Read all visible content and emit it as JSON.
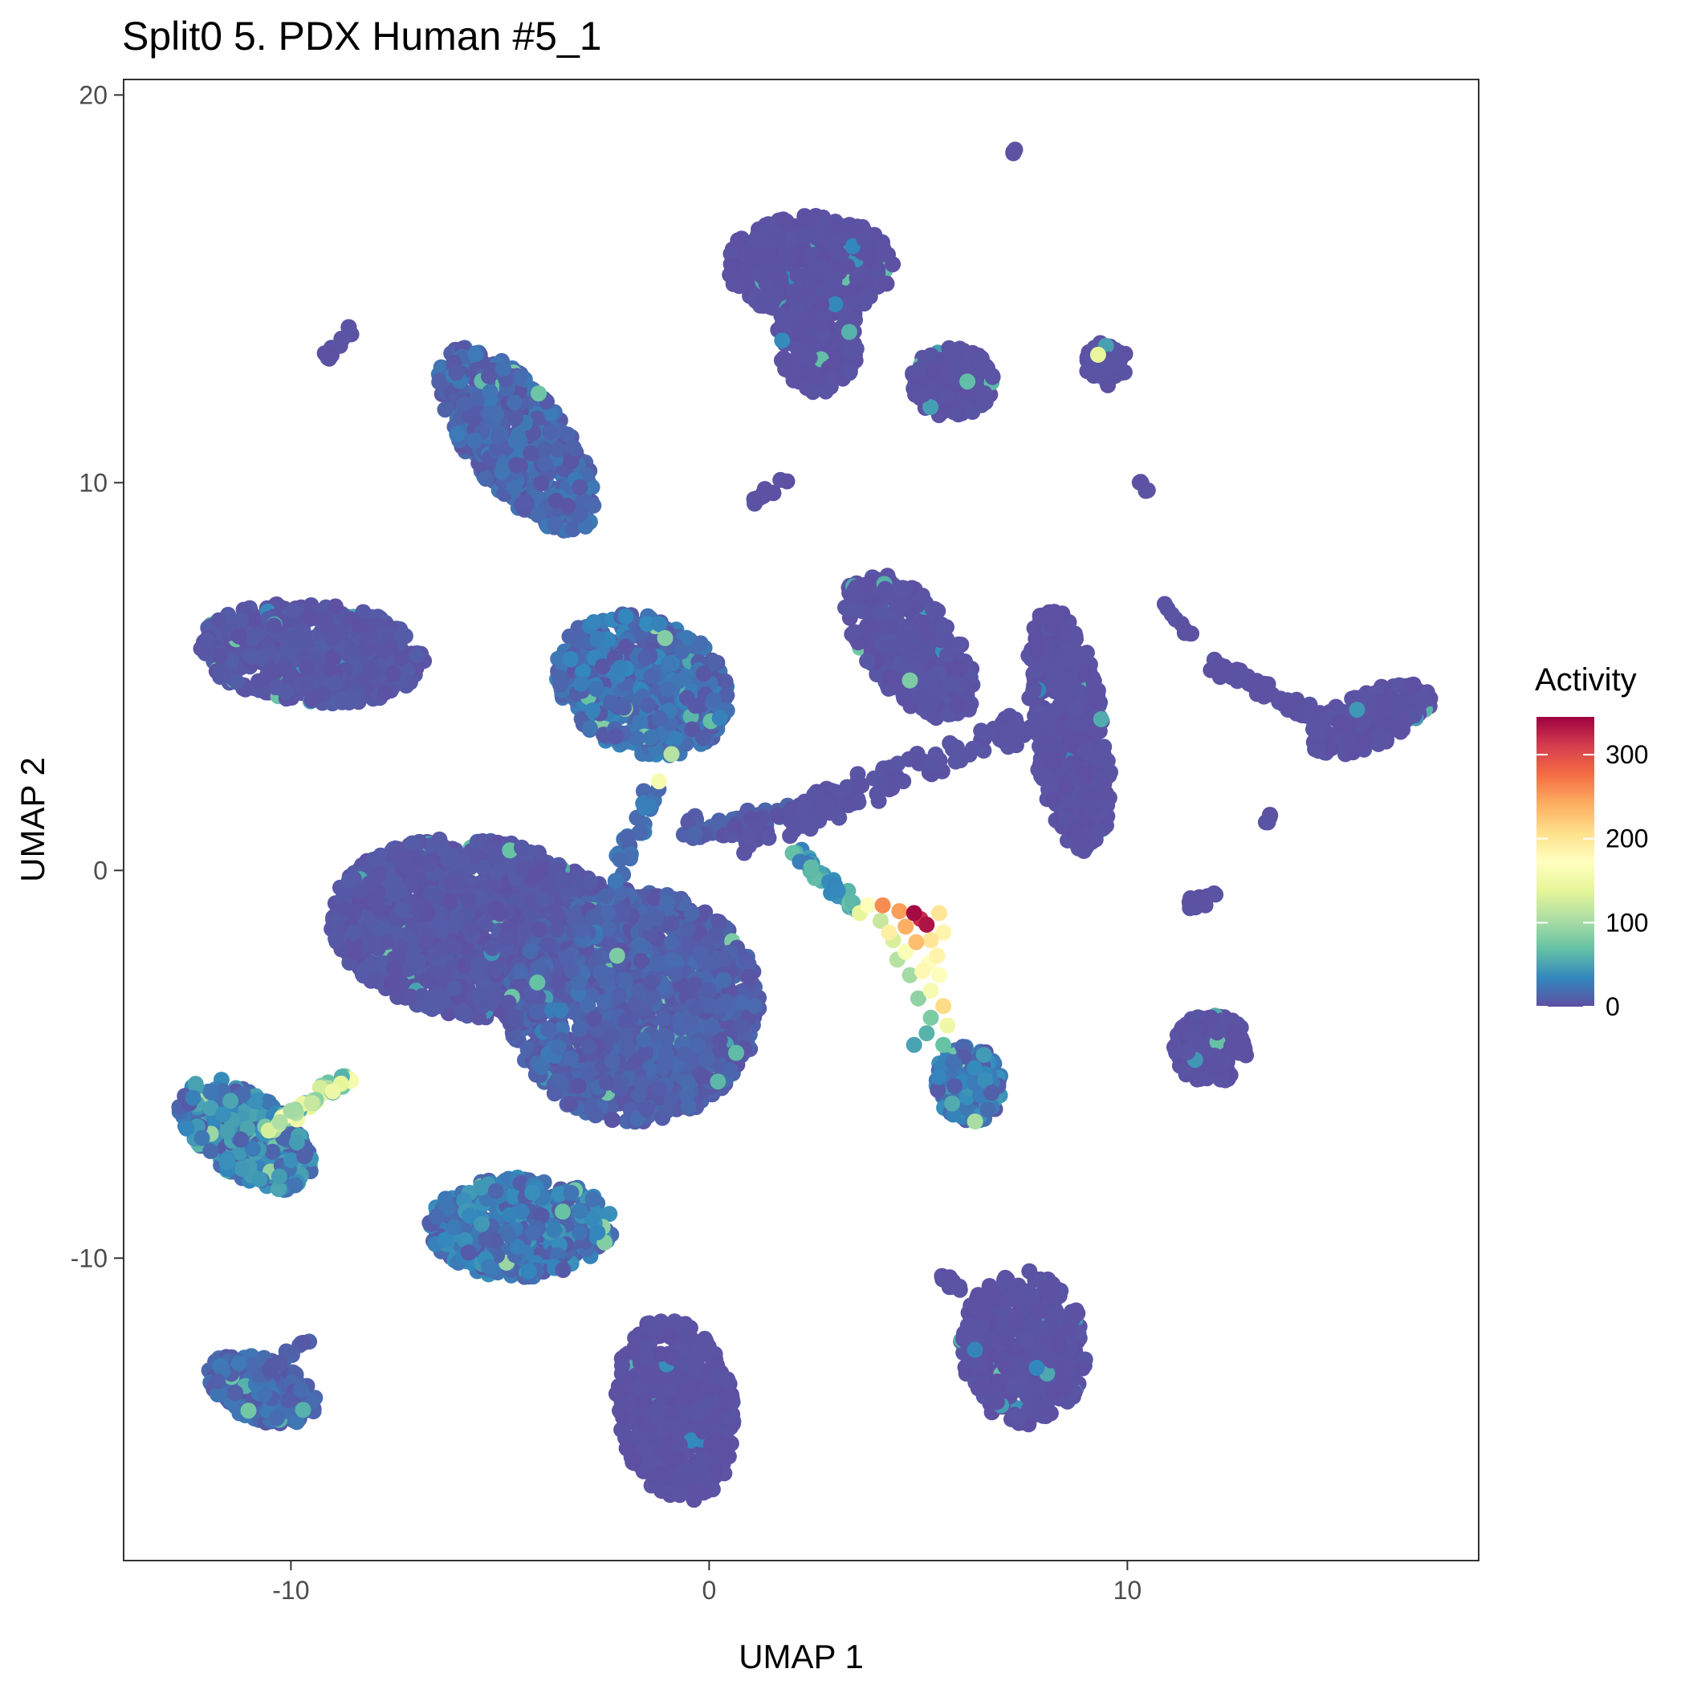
{
  "chart_data": {
    "type": "scatter",
    "title": "Split0 5. PDX Human #5_1",
    "xlabel": "UMAP 1",
    "ylabel": "UMAP 2",
    "xlim": [
      -14,
      18.4
    ],
    "ylim": [
      -17.8,
      20.4
    ],
    "x_ticks": [
      -10,
      0,
      10
    ],
    "y_ticks": [
      -10,
      0,
      10,
      20
    ],
    "grid": false,
    "legend": {
      "title": "Activity",
      "position": "right",
      "ticks": [
        0,
        100,
        200,
        300
      ],
      "range": [
        0,
        345
      ],
      "colorscale": [
        "#5e4fa2",
        "#3288bd",
        "#66c2a5",
        "#abdda4",
        "#e6f598",
        "#ffffbf",
        "#fee08b",
        "#fdae61",
        "#f46d43",
        "#d53e4f",
        "#9e0142"
      ]
    },
    "clusters": [
      {
        "cx": -5.5,
        "cy": -1.5,
        "rx": 3.6,
        "ry": 2.3,
        "rot": -8,
        "activity": 5,
        "n": 1400
      },
      {
        "cx": -1.8,
        "cy": -3.5,
        "rx": 3.0,
        "ry": 3.0,
        "rot": 35,
        "activity": 10,
        "n": 1300
      },
      {
        "cx": -1.6,
        "cy": 4.8,
        "rx": 2.2,
        "ry": 1.7,
        "rot": -30,
        "activity": 20,
        "n": 600
      },
      {
        "cx": -4.6,
        "cy": 11.1,
        "rx": 2.8,
        "ry": 1.2,
        "rot": -55,
        "activity": 15,
        "n": 500
      },
      {
        "cx": -9.5,
        "cy": 5.6,
        "rx": 2.7,
        "ry": 1.3,
        "rot": -5,
        "activity": 5,
        "n": 550
      },
      {
        "cx": 2.4,
        "cy": 15.6,
        "rx": 2.0,
        "ry": 1.3,
        "rot": 0,
        "activity": 2,
        "n": 450
      },
      {
        "cx": 2.6,
        "cy": 13.8,
        "rx": 1.0,
        "ry": 1.5,
        "rot": 0,
        "activity": 2,
        "n": 200
      },
      {
        "cx": 5.8,
        "cy": 12.6,
        "rx": 1.0,
        "ry": 0.9,
        "rot": 0,
        "activity": 2,
        "n": 150
      },
      {
        "cx": 4.8,
        "cy": 5.8,
        "rx": 2.2,
        "ry": 1.1,
        "rot": -55,
        "activity": 3,
        "n": 450
      },
      {
        "cx": 8.6,
        "cy": 3.6,
        "rx": 3.2,
        "ry": 0.9,
        "rot": -82,
        "activity": 2,
        "n": 450
      },
      {
        "cx": 15.8,
        "cy": 3.9,
        "rx": 1.6,
        "ry": 0.7,
        "rot": 25,
        "activity": 2,
        "n": 200
      },
      {
        "cx": -4.5,
        "cy": -9.2,
        "rx": 2.2,
        "ry": 1.3,
        "rot": 0,
        "activity": 25,
        "n": 500
      },
      {
        "cx": -0.8,
        "cy": -13.9,
        "rx": 1.4,
        "ry": 2.4,
        "rot": 8,
        "activity": 2,
        "n": 450
      },
      {
        "cx": 7.5,
        "cy": -12.3,
        "rx": 1.5,
        "ry": 2.0,
        "rot": 5,
        "activity": 2,
        "n": 420
      },
      {
        "cx": -10.7,
        "cy": -13.4,
        "rx": 1.4,
        "ry": 0.8,
        "rot": -25,
        "activity": 15,
        "n": 220
      },
      {
        "cx": -11.1,
        "cy": -6.8,
        "rx": 1.9,
        "ry": 1.0,
        "rot": -40,
        "activity": 30,
        "n": 350
      },
      {
        "cx": 12.0,
        "cy": -4.6,
        "rx": 0.9,
        "ry": 0.9,
        "rot": 0,
        "activity": 2,
        "n": 150
      },
      {
        "cx": 6.2,
        "cy": -5.5,
        "rx": 0.8,
        "ry": 1.0,
        "rot": 10,
        "activity": 25,
        "n": 180
      },
      {
        "cx": 9.5,
        "cy": 13.1,
        "rx": 0.5,
        "ry": 0.6,
        "rot": 0,
        "activity": 2,
        "n": 50
      }
    ],
    "trails": [
      {
        "from": [
          -1.2,
          2.5
        ],
        "to": [
          -4.0,
          -5.0
        ],
        "activity": 20,
        "n": 60,
        "spread": 0.25
      },
      {
        "from": [
          -0.7,
          1.0
        ],
        "to": [
          1.8,
          1.4
        ],
        "activity": 10,
        "n": 60,
        "spread": 0.3
      },
      {
        "from": [
          0.5,
          0.7
        ],
        "to": [
          8.2,
          4.0
        ],
        "activity": 3,
        "n": 140,
        "spread": 0.35
      },
      {
        "from": [
          2.0,
          0.5
        ],
        "to": [
          3.6,
          -1.0
        ],
        "activity": 50,
        "n": 40,
        "spread": 0.15
      },
      {
        "from": [
          12.0,
          5.3
        ],
        "to": [
          14.5,
          4.0
        ],
        "activity": 2,
        "n": 60,
        "spread": 0.15
      },
      {
        "from": [
          10.7,
          7.0
        ],
        "to": [
          11.5,
          6.0
        ],
        "activity": 2,
        "n": 10,
        "spread": 0.1
      },
      {
        "from": [
          -9.2,
          13.2
        ],
        "to": [
          -8.5,
          14.0
        ],
        "activity": 2,
        "n": 12,
        "spread": 0.1
      },
      {
        "from": [
          1.1,
          9.5
        ],
        "to": [
          1.8,
          10.1
        ],
        "activity": 2,
        "n": 12,
        "spread": 0.1
      },
      {
        "from": [
          -7.0,
          6.0
        ],
        "to": [
          -2.5,
          -4.5
        ],
        "activity": 2,
        "n": 0,
        "spread": 0.1
      },
      {
        "from": [
          10.3,
          10.0
        ],
        "to": [
          10.5,
          9.7
        ],
        "activity": 2,
        "n": 5,
        "spread": 0.05
      },
      {
        "from": [
          -10.5,
          -6.7
        ],
        "to": [
          -8.6,
          -5.3
        ],
        "activity": 110,
        "n": 40,
        "spread": 0.15
      },
      {
        "from": [
          -11.0,
          -13.2
        ],
        "to": [
          -9.4,
          -12.0
        ],
        "activity": 10,
        "n": 15,
        "spread": 0.1
      },
      {
        "from": [
          5.3,
          -10.3
        ],
        "to": [
          6.0,
          -10.8
        ],
        "activity": 2,
        "n": 10,
        "spread": 0.1
      },
      {
        "from": [
          12.0,
          -0.7
        ],
        "to": [
          11.5,
          -0.9
        ],
        "activity": 2,
        "n": 15,
        "spread": 0.15
      },
      {
        "from": [
          13.3,
          1.2
        ],
        "to": [
          13.5,
          1.5
        ],
        "activity": 2,
        "n": 5,
        "spread": 0.05
      },
      {
        "from": [
          7.3,
          18.5
        ],
        "to": [
          7.3,
          18.6
        ],
        "activity": 2,
        "n": 4,
        "spread": 0.03
      }
    ],
    "hotspot": [
      {
        "x": 4.9,
        "y": -1.1,
        "activity": 340
      },
      {
        "x": 5.2,
        "y": -1.4,
        "activity": 335
      },
      {
        "x": 5.05,
        "y": -1.25,
        "activity": 320
      },
      {
        "x": 4.55,
        "y": -1.05,
        "activity": 250
      },
      {
        "x": 4.15,
        "y": -0.9,
        "activity": 260
      },
      {
        "x": 4.7,
        "y": -1.45,
        "activity": 240
      },
      {
        "x": 4.95,
        "y": -1.85,
        "activity": 230
      },
      {
        "x": 5.3,
        "y": -1.8,
        "activity": 200
      },
      {
        "x": 5.45,
        "y": -2.2,
        "activity": 185
      },
      {
        "x": 5.1,
        "y": -2.6,
        "activity": 180
      },
      {
        "x": 5.5,
        "y": -2.7,
        "activity": 170
      },
      {
        "x": 5.3,
        "y": -3.1,
        "activity": 160
      },
      {
        "x": 5.6,
        "y": -3.5,
        "activity": 210
      },
      {
        "x": 5.7,
        "y": -4.0,
        "activity": 150
      },
      {
        "x": 4.4,
        "y": -1.8,
        "activity": 130
      },
      {
        "x": 4.1,
        "y": -1.3,
        "activity": 120
      },
      {
        "x": 4.5,
        "y": -2.3,
        "activity": 110
      },
      {
        "x": 4.8,
        "y": -2.7,
        "activity": 100
      },
      {
        "x": 5.0,
        "y": -3.3,
        "activity": 90
      },
      {
        "x": 5.3,
        "y": -3.8,
        "activity": 80
      },
      {
        "x": 5.6,
        "y": -4.5,
        "activity": 70
      },
      {
        "x": 5.2,
        "y": -4.2,
        "activity": 60
      },
      {
        "x": 4.9,
        "y": -4.5,
        "activity": 50
      },
      {
        "x": 3.8,
        "y": -0.9,
        "activity": 170
      },
      {
        "x": 3.6,
        "y": -1.1,
        "activity": 140
      },
      {
        "x": 4.3,
        "y": -1.6,
        "activity": 190
      },
      {
        "x": 5.5,
        "y": -1.1,
        "activity": 200
      },
      {
        "x": 5.6,
        "y": -1.6,
        "activity": 185
      },
      {
        "x": 5.25,
        "y": -2.4,
        "activity": 175
      },
      {
        "x": 4.7,
        "y": -2.1,
        "activity": 165
      },
      {
        "x": -1.2,
        "y": 2.3,
        "activity": 160
      },
      {
        "x": -0.9,
        "y": 3.0,
        "activity": 110
      },
      {
        "x": -9.0,
        "y": -5.7,
        "activity": 150
      },
      {
        "x": -8.8,
        "y": -5.5,
        "activity": 140
      },
      {
        "x": -9.5,
        "y": -6.0,
        "activity": 120
      },
      {
        "x": -10.0,
        "y": -6.2,
        "activity": 100
      },
      {
        "x": 9.3,
        "y": 13.3,
        "activity": 140
      },
      {
        "x": 4.8,
        "y": 4.9,
        "activity": 80
      },
      {
        "x": -3.5,
        "y": -8.8,
        "activity": 70
      },
      {
        "x": -2.2,
        "y": -2.2,
        "activity": 80
      }
    ]
  }
}
